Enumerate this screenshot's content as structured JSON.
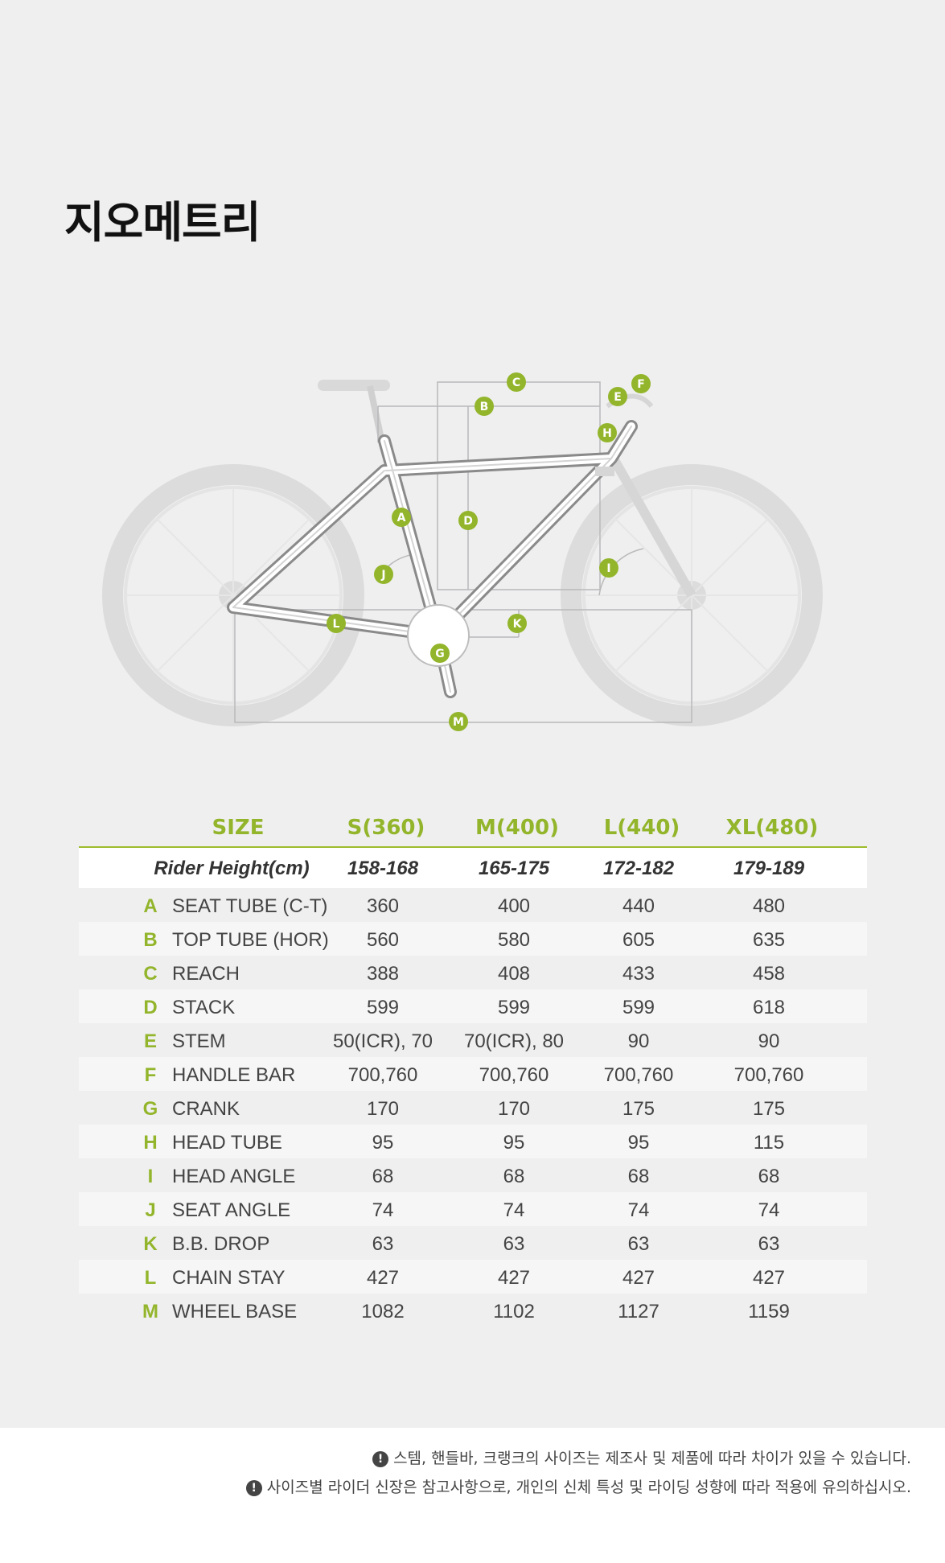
{
  "title": "지오메트리",
  "markers": [
    "A",
    "B",
    "C",
    "D",
    "E",
    "F",
    "G",
    "H",
    "I",
    "J",
    "K",
    "L",
    "M"
  ],
  "accent_color": "#93b52b",
  "table": {
    "headers": [
      "SIZE",
      "S(360)",
      "M(400)",
      "L(440)",
      "XL(480)"
    ],
    "rider_height": {
      "label": "Rider Height(cm)",
      "values": [
        "158-168",
        "165-175",
        "172-182",
        "179-189"
      ]
    },
    "rows": [
      {
        "code": "A",
        "label": "SEAT TUBE (C-T)",
        "values": [
          "360",
          "400",
          "440",
          "480"
        ]
      },
      {
        "code": "B",
        "label": "TOP TUBE (HOR)",
        "values": [
          "560",
          "580",
          "605",
          "635"
        ]
      },
      {
        "code": "C",
        "label": "REACH",
        "values": [
          "388",
          "408",
          "433",
          "458"
        ]
      },
      {
        "code": "D",
        "label": "STACK",
        "values": [
          "599",
          "599",
          "599",
          "618"
        ]
      },
      {
        "code": "E",
        "label": "STEM",
        "values": [
          "50(ICR), 70",
          "70(ICR), 80",
          "90",
          "90"
        ]
      },
      {
        "code": "F",
        "label": "HANDLE BAR",
        "values": [
          "700,760",
          "700,760",
          "700,760",
          "700,760"
        ]
      },
      {
        "code": "G",
        "label": "CRANK",
        "values": [
          "170",
          "170",
          "175",
          "175"
        ]
      },
      {
        "code": "H",
        "label": "HEAD TUBE",
        "values": [
          "95",
          "95",
          "95",
          "115"
        ]
      },
      {
        "code": "I",
        "label": "HEAD ANGLE",
        "values": [
          "68",
          "68",
          "68",
          "68"
        ]
      },
      {
        "code": "J",
        "label": "SEAT ANGLE",
        "values": [
          "74",
          "74",
          "74",
          "74"
        ]
      },
      {
        "code": "K",
        "label": "B.B. DROP",
        "values": [
          "63",
          "63",
          "63",
          "63"
        ]
      },
      {
        "code": "L",
        "label": "CHAIN STAY",
        "values": [
          "427",
          "427",
          "427",
          "427"
        ]
      },
      {
        "code": "M",
        "label": "WHEEL BASE",
        "values": [
          "1082",
          "1102",
          "1127",
          "1159"
        ]
      }
    ]
  },
  "notes": [
    "스템, 핸들바, 크랭크의 사이즈는 제조사 및 제품에 따라 차이가 있을 수 있습니다.",
    "사이즈별 라이더 신장은 참고사항으로, 개인의 신체 특성 및 라이딩 성향에 따라 적용에 유의하십시오."
  ]
}
